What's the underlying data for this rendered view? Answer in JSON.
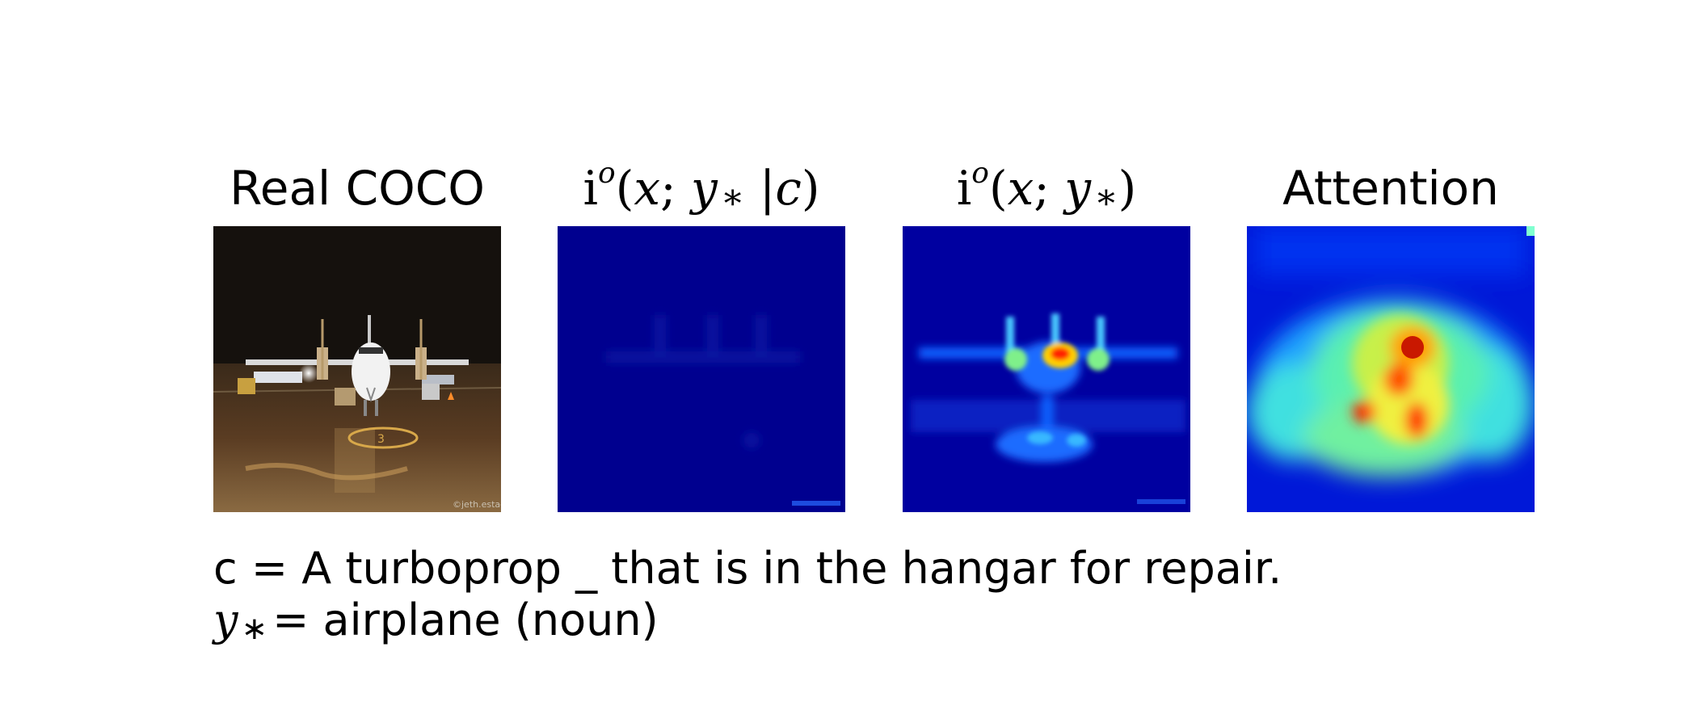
{
  "panels": [
    {
      "title": "Real COCO",
      "image": "photo-of-turboprop-airplane-at-night",
      "watermark": "©jeth.estacio"
    },
    {
      "title_symbol": "i",
      "title_superscript": "o",
      "title_var_x": "x",
      "title_var_y": "y",
      "title_sub": "∗",
      "title_cond": "c",
      "image": "heatmap-conditional-information-mostly-blue"
    },
    {
      "title_symbol": "i",
      "title_superscript": "o",
      "title_var_x": "x",
      "title_var_y": "y",
      "title_sub": "∗",
      "image": "heatmap-information-airplane-silhouette"
    },
    {
      "title": "Attention",
      "image": "heatmap-attention-map"
    }
  ],
  "caption": {
    "context_label": "c",
    "context_text": "A turboprop _ that is in the hangar for repair.",
    "word_label": "y",
    "word_sub": "∗",
    "word_text": "airplane (noun)"
  },
  "colors": {
    "jet_low": "#00008f",
    "jet_mid": "#00ffff",
    "jet_high": "#ff0000",
    "background": "#ffffff"
  }
}
